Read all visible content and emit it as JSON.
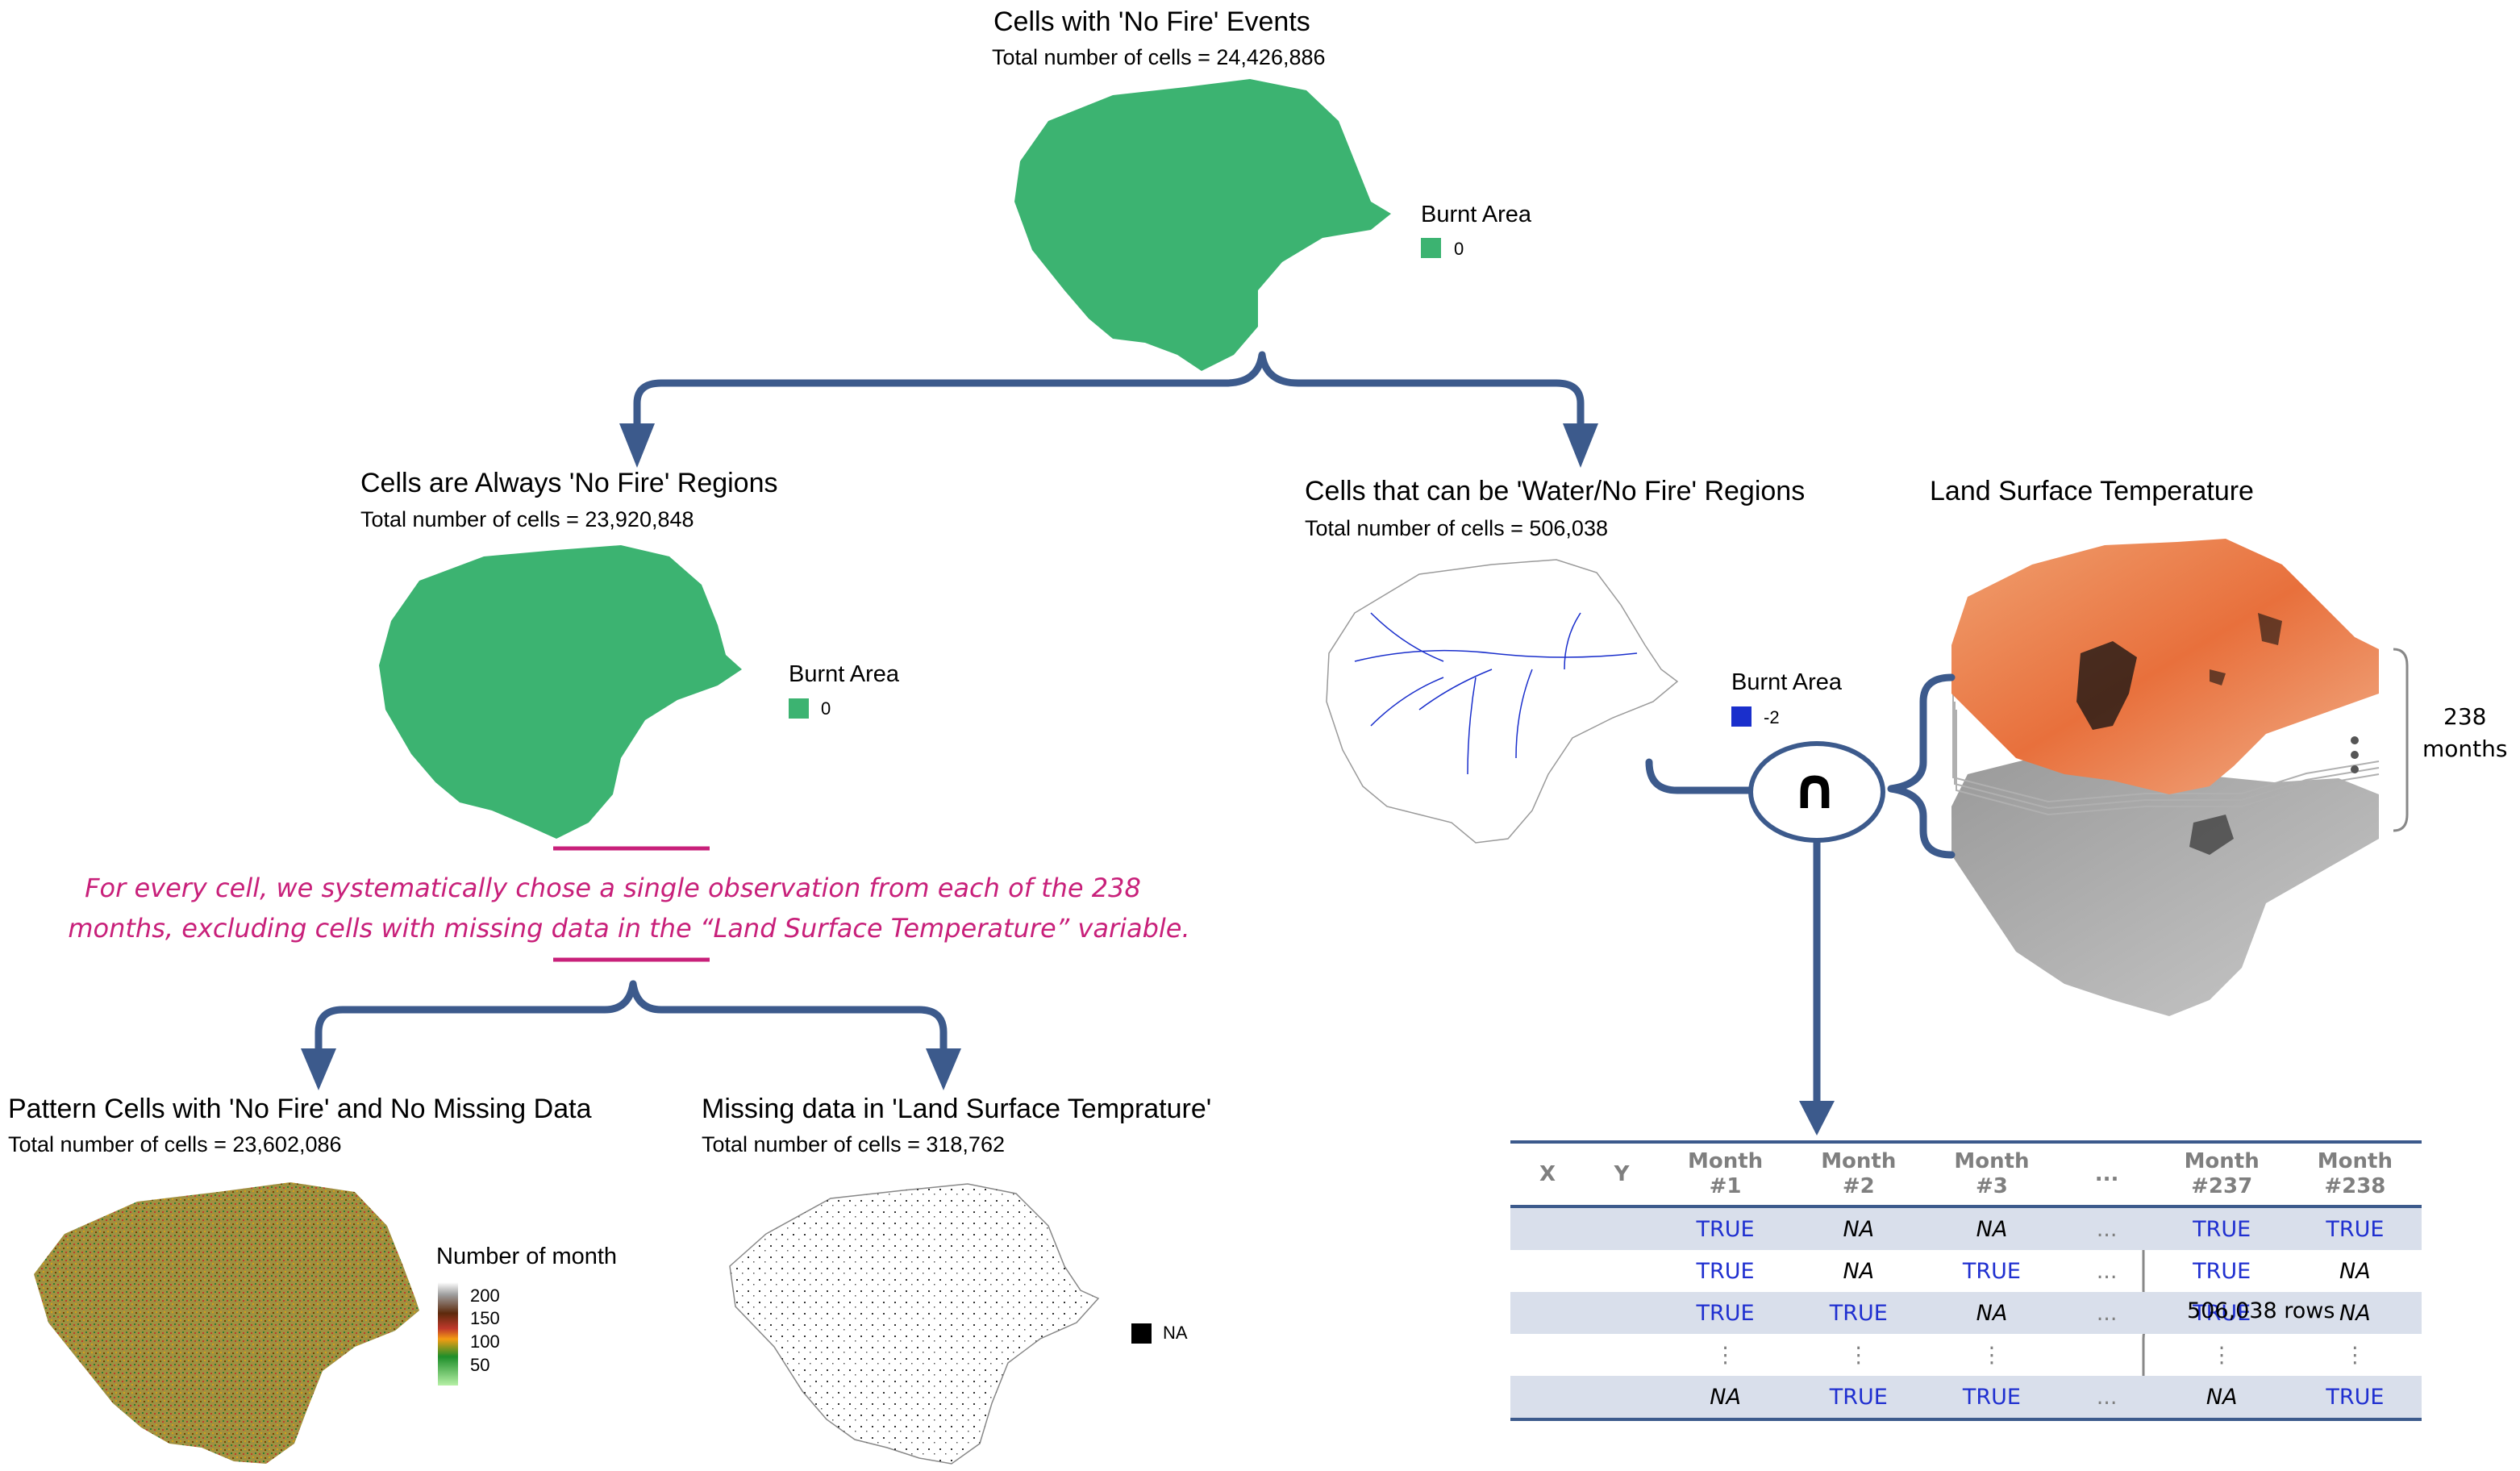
{
  "colors": {
    "green": "#3cb371",
    "water_blue": "#1a2fcc",
    "arrow": "#3c5a8c",
    "note_magenta": "#c8207a",
    "true_text": "#1f2fd0",
    "row_band": "#d9dfeb"
  },
  "top": {
    "title": "Cells with 'No Fire' Events",
    "subtitle": "Total number of cells = 24,426,886",
    "legend_title": "Burnt Area",
    "legend_value": "0"
  },
  "always_no_fire": {
    "title": "Cells are Always 'No Fire' Regions",
    "subtitle": "Total number of cells = 23,920,848",
    "legend_title": "Burnt Area",
    "legend_value": "0"
  },
  "water": {
    "title": "Cells that can be 'Water/No Fire' Regions",
    "subtitle": "Total number of cells = 506,038",
    "legend_title": "Burnt Area",
    "legend_value": "-2"
  },
  "lst": {
    "title": "Land Surface Temperature",
    "stack_count": "238",
    "stack_unit": "months"
  },
  "intersection_symbol": "∩",
  "note": {
    "line1": "For every cell, we systematically chose a single observation from each of the 238",
    "line2": "months, excluding cells with missing data in the “Land Surface Temperature” variable."
  },
  "pattern": {
    "title": "Pattern Cells with 'No Fire' and No Missing Data",
    "subtitle": "Total number of cells = 23,602,086",
    "legend_title": "Number of month",
    "legend_ticks": [
      "200",
      "150",
      "100",
      "50"
    ]
  },
  "missing": {
    "title": "Missing data in 'Land Surface Temprature'",
    "subtitle": "Total number of cells = 318,762",
    "legend_value": "NA"
  },
  "table": {
    "headers": [
      {
        "l1": "X",
        "l2": ""
      },
      {
        "l1": "Y",
        "l2": ""
      },
      {
        "l1": "Month",
        "l2": "#1"
      },
      {
        "l1": "Month",
        "l2": "#2"
      },
      {
        "l1": "Month",
        "l2": "#3"
      },
      {
        "l1": "...",
        "l2": ""
      },
      {
        "l1": "Month",
        "l2": "#237"
      },
      {
        "l1": "Month",
        "l2": "#238"
      }
    ],
    "rows": [
      [
        "",
        "",
        "TRUE",
        "NA",
        "NA",
        "...",
        "TRUE",
        "TRUE"
      ],
      [
        "",
        "",
        "TRUE",
        "NA",
        "TRUE",
        "...",
        "TRUE",
        "NA"
      ],
      [
        "",
        "",
        "TRUE",
        "TRUE",
        "NA",
        "...",
        "TRUE",
        "NA"
      ],
      [
        "",
        "",
        "⋮",
        "⋮",
        "⋮",
        "",
        "⋮",
        "⋮"
      ],
      [
        "",
        "",
        "NA",
        "TRUE",
        "TRUE",
        "...",
        "NA",
        "TRUE"
      ]
    ],
    "rows_label": "506,038 rows"
  }
}
